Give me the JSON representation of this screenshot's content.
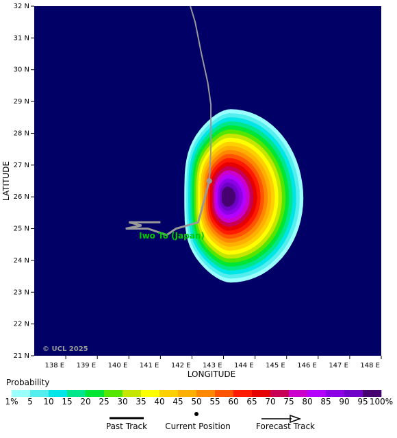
{
  "map": {
    "lon_range": [
      137,
      148
    ],
    "lat_range": [
      21,
      32
    ],
    "x_ticks": [
      "138 E",
      "139 E",
      "140 E",
      "141 E",
      "142 E",
      "143 E",
      "144 E",
      "145 E",
      "146 E",
      "147 E",
      "148 E"
    ],
    "y_ticks": [
      "21 N",
      "22 N",
      "23 N",
      "24 N",
      "25 N",
      "26 N",
      "27 N",
      "28 N",
      "29 N",
      "30 N",
      "31 N",
      "32 N"
    ],
    "xlabel": "LONGITUDE",
    "ylabel": "LATITUDE",
    "background_color": "#000066",
    "copyright": "© UCL 2025",
    "place_label": "Iwo To (Japan)",
    "place_label_color": "#00cc00",
    "probability_center": {
      "lon": 143.1,
      "lat": 26.0
    },
    "past_track": [
      [
        141.0,
        25.2
      ],
      [
        140.5,
        25.2
      ],
      [
        140.0,
        25.2
      ],
      [
        140.4,
        25.1
      ],
      [
        139.9,
        25.0
      ],
      [
        140.6,
        25.0
      ],
      [
        141.2,
        24.8
      ],
      [
        141.5,
        25.0
      ],
      [
        142.2,
        25.2
      ],
      [
        142.55,
        26.5
      ]
    ],
    "current_position": [
      142.55,
      26.5
    ],
    "forecast_track": [
      [
        142.55,
        26.5
      ],
      [
        142.6,
        27.5
      ],
      [
        142.6,
        28.9
      ],
      [
        142.5,
        29.6
      ],
      [
        142.3,
        30.5
      ],
      [
        142.1,
        31.5
      ],
      [
        141.95,
        32.0
      ]
    ]
  },
  "legend": {
    "title": "Probability",
    "labels": [
      "1%",
      "5",
      "10",
      "15",
      "20",
      "25",
      "30",
      "35",
      "40",
      "45",
      "50",
      "55",
      "60",
      "65",
      "70",
      "75",
      "80",
      "85",
      "90",
      "95",
      "100%"
    ],
    "colors": [
      "#99ffff",
      "#55eeee",
      "#00e5e5",
      "#00e68a",
      "#00e635",
      "#55e600",
      "#c5e600",
      "#ffff00",
      "#ffd000",
      "#ffb000",
      "#ff8800",
      "#ff5500",
      "#ff1a00",
      "#e60000",
      "#c80055",
      "#cc00cc",
      "#b400ff",
      "#8c00e6",
      "#6e00c8",
      "#460070"
    ],
    "past_track_label": "Past Track",
    "current_position_label": "Current Position",
    "forecast_track_label": "Forecast Track"
  }
}
